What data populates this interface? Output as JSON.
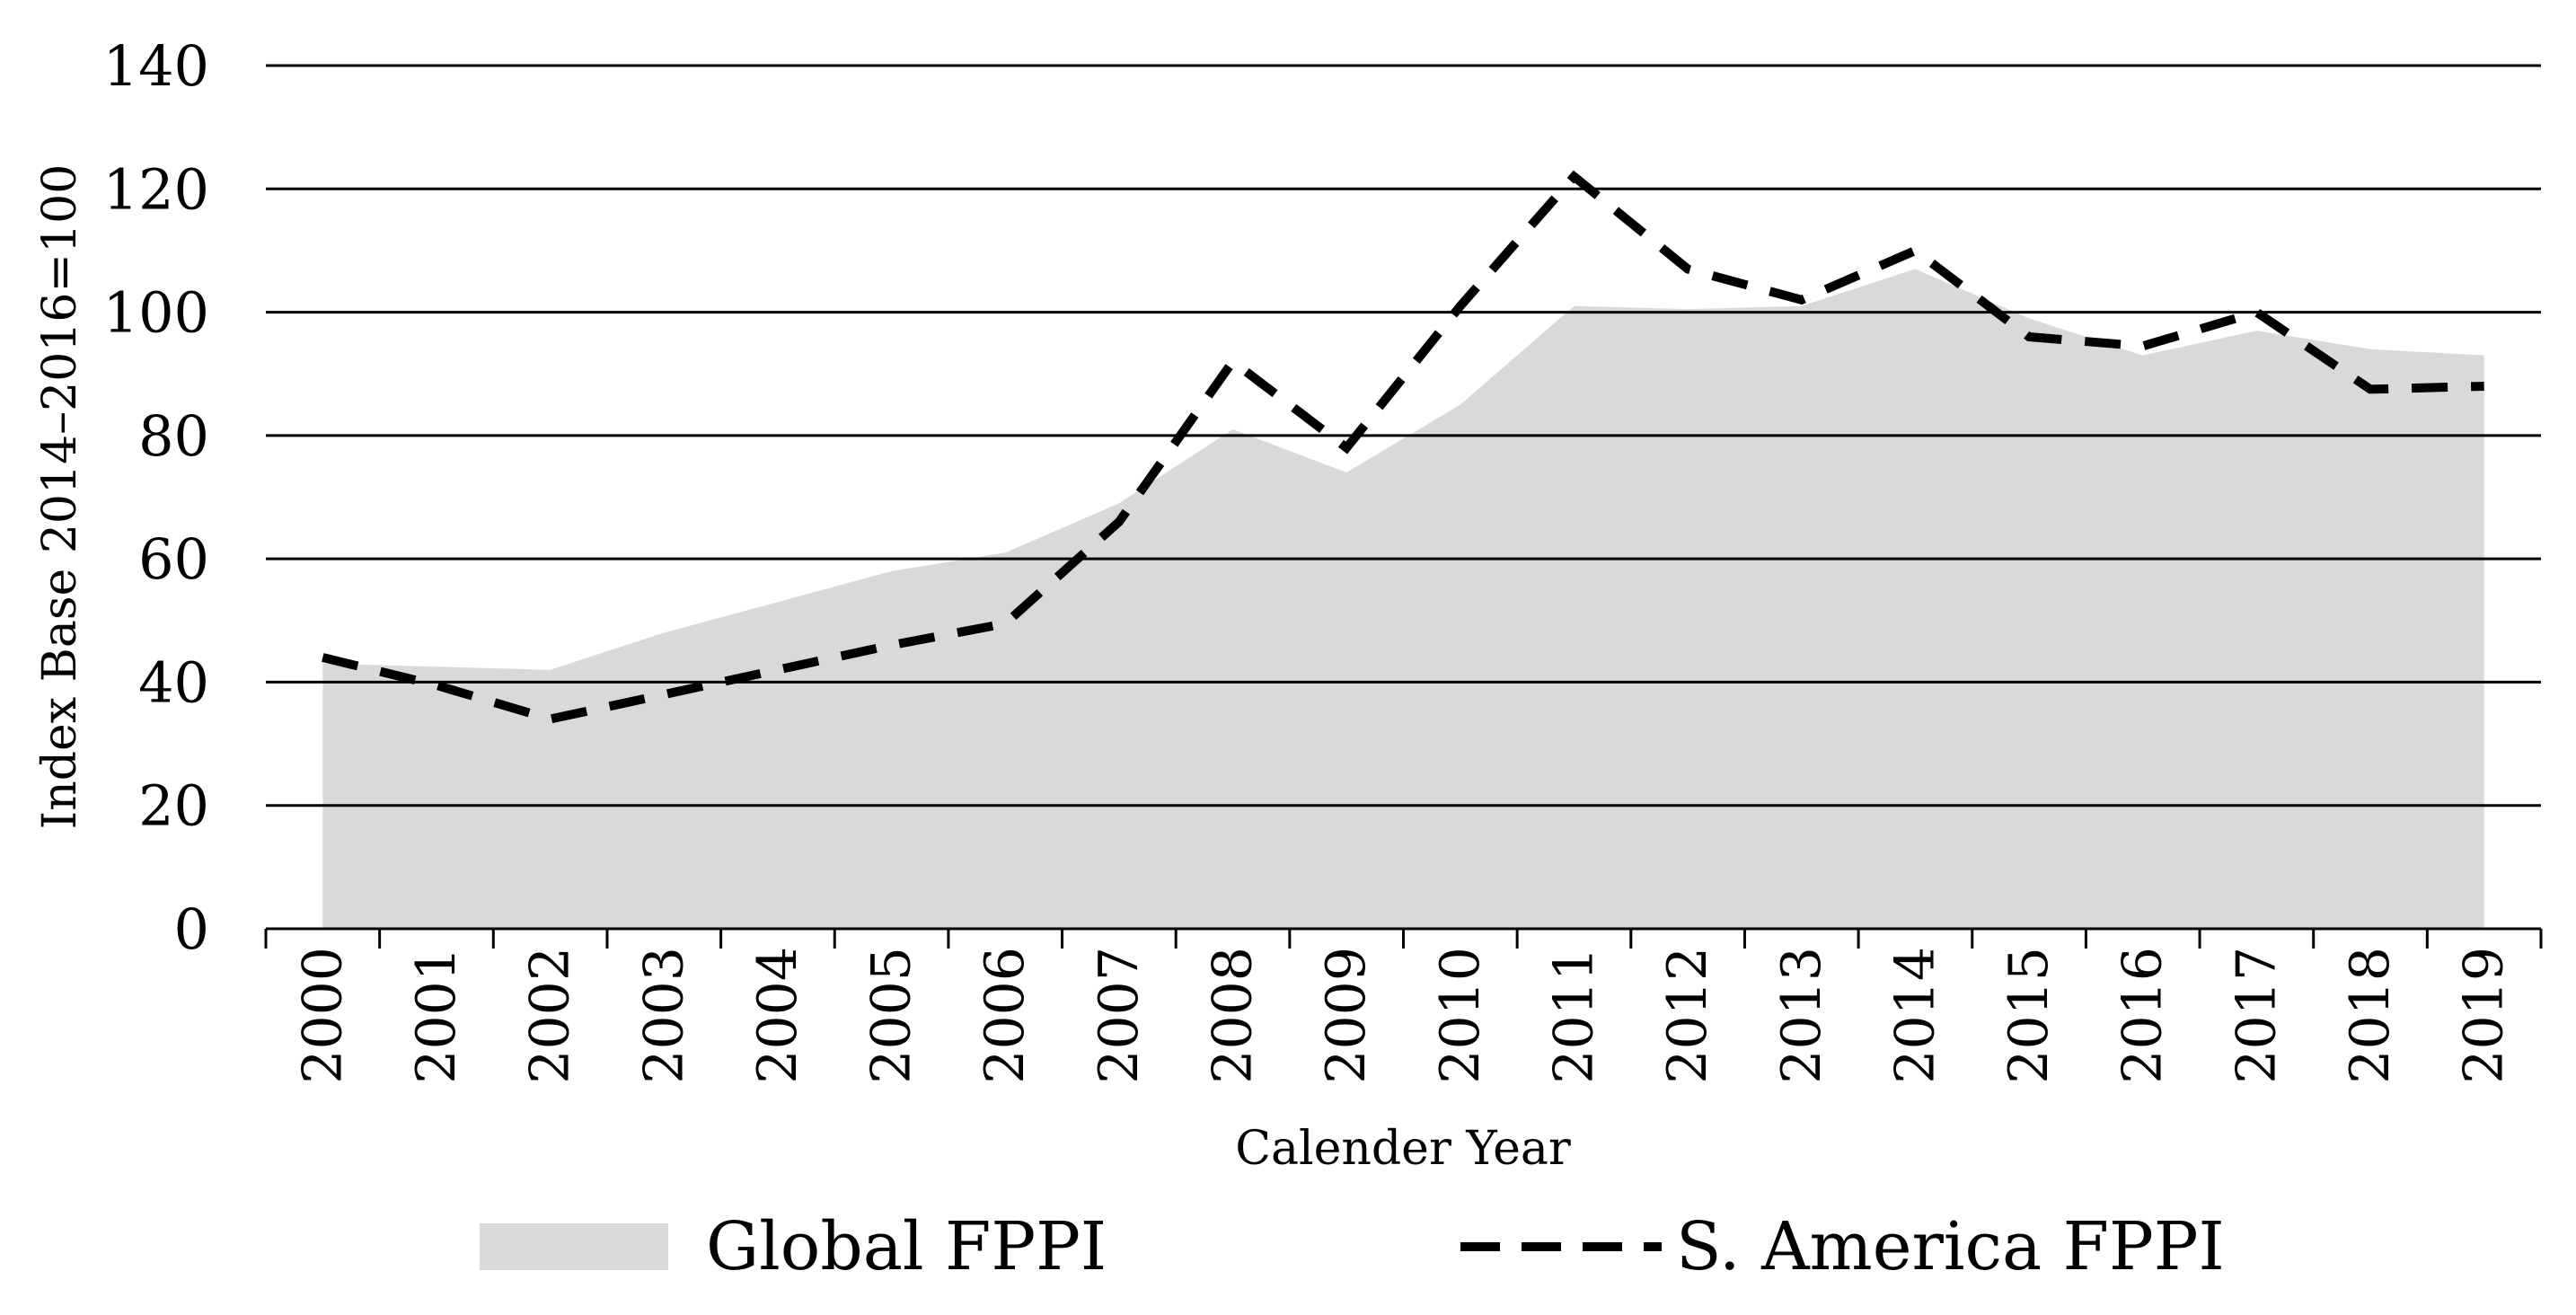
{
  "chart_data": {
    "type": "area",
    "title": "",
    "xlabel": "Calender Year",
    "ylabel": "Index Base 2014–2016=100",
    "ylim": [
      0,
      140
    ],
    "yticks": [
      0,
      20,
      40,
      60,
      80,
      100,
      120,
      140
    ],
    "grid": true,
    "legend_position": "bottom",
    "categories": [
      "2000",
      "2001",
      "2002",
      "2003",
      "2004",
      "2005",
      "2006",
      "2007",
      "2008",
      "2009",
      "2010",
      "2011",
      "2012",
      "2013",
      "2014",
      "2015",
      "2016",
      "2017",
      "2018",
      "2019"
    ],
    "series": [
      {
        "name": "Global FPPI",
        "style": "area",
        "color": "#d9d9d9",
        "values": [
          43,
          42.5,
          42,
          48,
          53,
          58,
          61,
          69,
          81,
          74,
          85,
          101,
          100.5,
          101,
          107,
          99,
          93,
          97,
          94,
          93
        ]
      },
      {
        "name": "S. America FPPI",
        "style": "dashed-line",
        "color": "#000000",
        "values": [
          44,
          39.5,
          34,
          38,
          42,
          46,
          49.5,
          66,
          92,
          78,
          101,
          122,
          107,
          102,
          110,
          96,
          94.5,
          100,
          87.5,
          88
        ]
      }
    ]
  }
}
